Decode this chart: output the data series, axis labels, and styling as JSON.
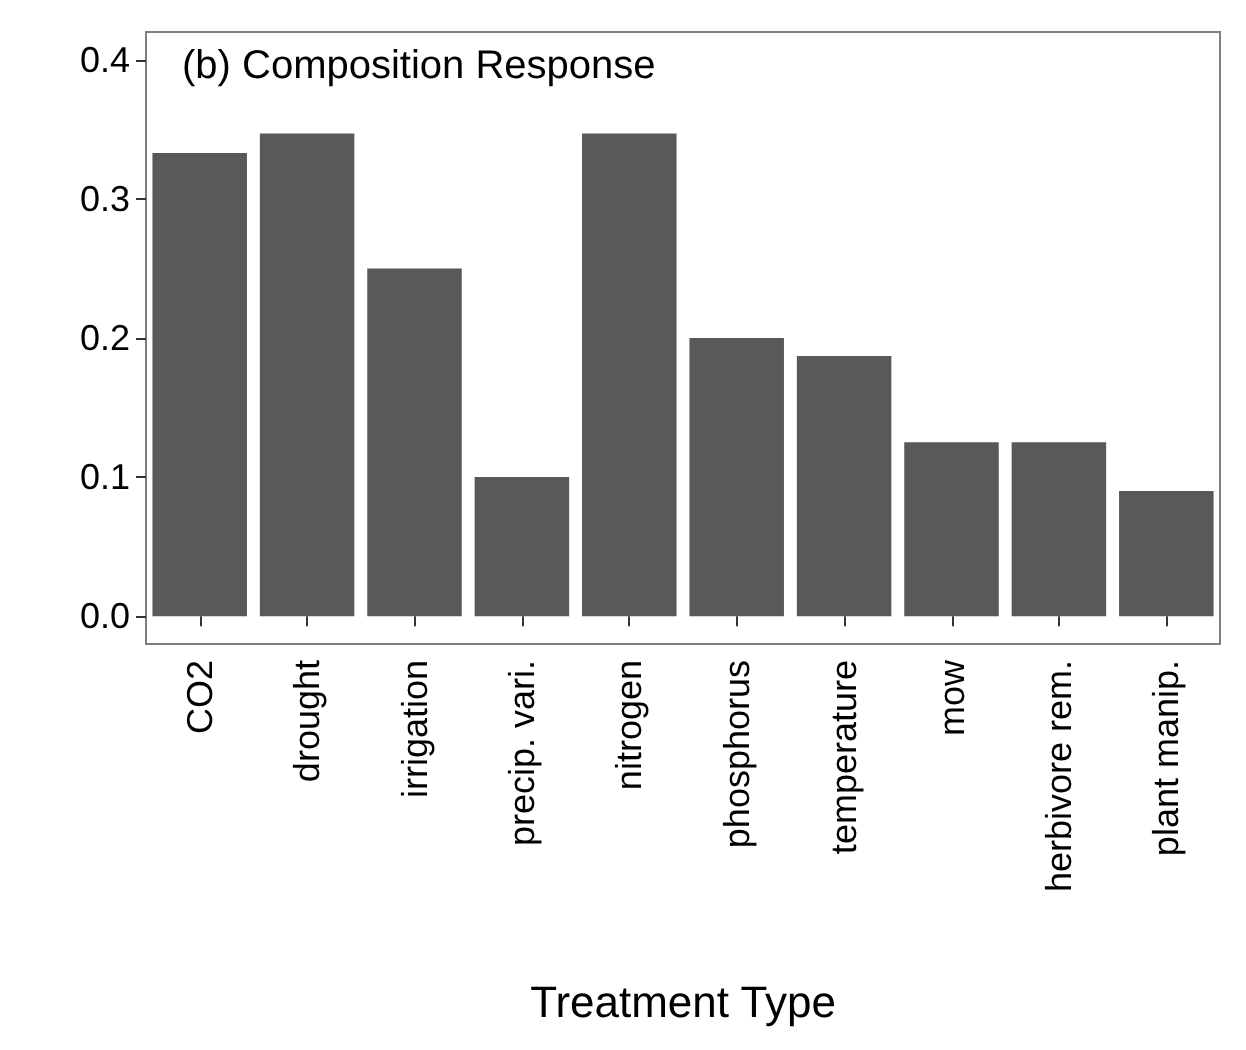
{
  "chart_data": {
    "type": "bar",
    "title": "(b) Composition Response",
    "xlabel": "Treatment Type",
    "categories": [
      "CO2",
      "drought",
      "irrigation",
      "precip. vari.",
      "nitrogen",
      "phosphorus",
      "temperature",
      "mow",
      "herbivore rem.",
      "plant manip."
    ],
    "values": [
      0.333,
      0.347,
      0.25,
      0.1,
      0.347,
      0.2,
      0.187,
      0.125,
      0.125,
      0.09
    ],
    "color": "#595959",
    "ylim": [
      -0.02,
      0.42
    ],
    "yticks": [
      {
        "value": 0,
        "label": "0.0"
      },
      {
        "value": 0.1,
        "label": "0.1"
      },
      {
        "value": 0.2,
        "label": "0.2"
      },
      {
        "value": 0.3,
        "label": "0.3"
      },
      {
        "value": 0.4,
        "label": "0.4"
      }
    ],
    "grid": false
  }
}
